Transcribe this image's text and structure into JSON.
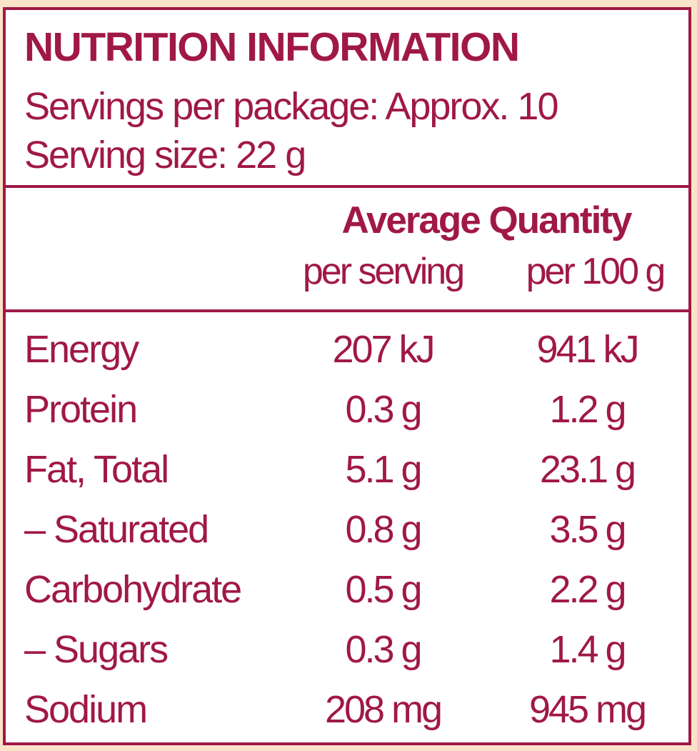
{
  "panel": {
    "title": "NUTRITION INFORMATION",
    "servings_per_package": "Servings per package: Approx. 10",
    "serving_size": "Serving size: 22 g"
  },
  "table": {
    "header": "Average Quantity",
    "col_per_serving": "per serving",
    "col_per_100g": "per 100 g",
    "rows": [
      {
        "name": "Energy",
        "per_serving": "207 kJ",
        "per_100g": "941 kJ"
      },
      {
        "name": "Protein",
        "per_serving": "0.3 g",
        "per_100g": "1.2 g"
      },
      {
        "name": "Fat, Total",
        "per_serving": "5.1 g",
        "per_100g": "23.1 g"
      },
      {
        "name": "–  Saturated",
        "per_serving": "0.8 g",
        "per_100g": "3.5 g"
      },
      {
        "name": "Carbohydrate",
        "per_serving": "0.5 g",
        "per_100g": "2.2 g"
      },
      {
        "name": "–  Sugars",
        "per_serving": "0.3 g",
        "per_100g": "1.4 g"
      },
      {
        "name": "Sodium",
        "per_serving": "208 mg",
        "per_100g": "945 mg"
      }
    ]
  },
  "colors": {
    "text": "#a01848",
    "border": "#a01848",
    "background": "#ffffff",
    "surround": "#fbe3c9"
  }
}
